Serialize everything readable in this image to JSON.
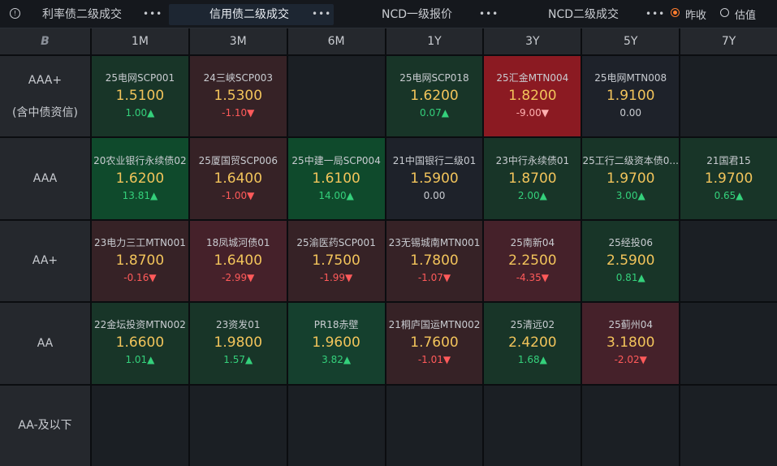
{
  "tabs": [
    {
      "label": "利率债二级成交",
      "active": false
    },
    {
      "label": "信用债二级成交",
      "active": true
    },
    {
      "label": "NCD一级报价",
      "active": false
    },
    {
      "label": "NCD二级成交",
      "active": false
    }
  ],
  "more_label": "•••",
  "radio": {
    "yesterday_label": "昨收",
    "estimate_label": "估值",
    "selected": "yesterday"
  },
  "corner_label": "B",
  "columns": [
    "1M",
    "3M",
    "6M",
    "1Y",
    "3Y",
    "5Y",
    "7Y"
  ],
  "rows": [
    {
      "label": "AAA+\n(含中债资信)",
      "cells": [
        {
          "name": "25电网SCP001",
          "price": "1.5100",
          "change": "1.00▲",
          "dir": "up",
          "tone": "g-weak"
        },
        {
          "name": "24三峡SCP003",
          "price": "1.5300",
          "change": "-1.10▼",
          "dir": "down",
          "tone": "r-weak"
        },
        null,
        {
          "name": "25电网SCP018",
          "price": "1.6200",
          "change": "0.07▲",
          "dir": "up",
          "tone": "g-weak"
        },
        {
          "name": "25汇金MTN004",
          "price": "1.8200",
          "change": "-9.00▼",
          "dir": "down",
          "tone": "r-strong"
        },
        {
          "name": "25电网MTN008",
          "price": "1.9100",
          "change": "0.00",
          "dir": "flat",
          "tone": "neutral"
        },
        null
      ]
    },
    {
      "label": "AAA",
      "cells": [
        {
          "name": "20农业银行永续债02",
          "price": "1.6200",
          "change": "13.81▲",
          "dir": "up",
          "tone": "g-strong"
        },
        {
          "name": "25厦国贸SCP006",
          "price": "1.6400",
          "change": "-1.00▼",
          "dir": "down",
          "tone": "r-weak"
        },
        {
          "name": "25中建一局SCP004",
          "price": "1.6100",
          "change": "14.00▲",
          "dir": "up",
          "tone": "g-strong"
        },
        {
          "name": "21中国银行二级01",
          "price": "1.5900",
          "change": "0.00",
          "dir": "flat",
          "tone": "neutral"
        },
        {
          "name": "23中行永续债01",
          "price": "1.8700",
          "change": "2.00▲",
          "dir": "up",
          "tone": "g-weak"
        },
        {
          "name": "25工行二级资本债0...",
          "price": "1.9700",
          "change": "3.00▲",
          "dir": "up",
          "tone": "g-weak"
        },
        {
          "name": "21国君15",
          "price": "1.9700",
          "change": "0.65▲",
          "dir": "up",
          "tone": "g-weak"
        }
      ]
    },
    {
      "label": "AA+",
      "cells": [
        {
          "name": "23电力三工MTN001",
          "price": "1.8700",
          "change": "-0.16▼",
          "dir": "down",
          "tone": "r-weak"
        },
        {
          "name": "18凤城河债01",
          "price": "1.6400",
          "change": "-2.99▼",
          "dir": "down",
          "tone": "r-mid"
        },
        {
          "name": "25渝医药SCP001",
          "price": "1.7500",
          "change": "-1.99▼",
          "dir": "down",
          "tone": "r-weak"
        },
        {
          "name": "23无锡城南MTN001",
          "price": "1.7800",
          "change": "-1.07▼",
          "dir": "down",
          "tone": "r-weak"
        },
        {
          "name": "25南新04",
          "price": "2.2500",
          "change": "-4.35▼",
          "dir": "down",
          "tone": "r-mid"
        },
        {
          "name": "25经投06",
          "price": "2.5900",
          "change": "0.81▲",
          "dir": "up",
          "tone": "g-weak"
        },
        null
      ]
    },
    {
      "label": "AA",
      "cells": [
        {
          "name": "22金坛投资MTN002",
          "price": "1.6600",
          "change": "1.01▲",
          "dir": "up",
          "tone": "g-weak"
        },
        {
          "name": "23资发01",
          "price": "1.9800",
          "change": "1.57▲",
          "dir": "up",
          "tone": "g-weak"
        },
        {
          "name": "PR18赤壁",
          "price": "1.9600",
          "change": "3.82▲",
          "dir": "up",
          "tone": "g-mid"
        },
        {
          "name": "21桐庐国运MTN002",
          "price": "1.7600",
          "change": "-1.01▼",
          "dir": "down",
          "tone": "r-weak"
        },
        {
          "name": "25清远02",
          "price": "2.4200",
          "change": "1.68▲",
          "dir": "up",
          "tone": "g-weak"
        },
        {
          "name": "25蓟州04",
          "price": "3.1800",
          "change": "-2.02▼",
          "dir": "down",
          "tone": "r-mid"
        },
        null
      ]
    },
    {
      "label": "AA-及以下",
      "cells": [
        null,
        null,
        null,
        null,
        null,
        null,
        null
      ]
    }
  ],
  "colors": {
    "up": "#34d07b",
    "down": "#ff5a5a",
    "price": "#f2c45b",
    "accent": "#ff7d2e",
    "background": "#111418"
  }
}
